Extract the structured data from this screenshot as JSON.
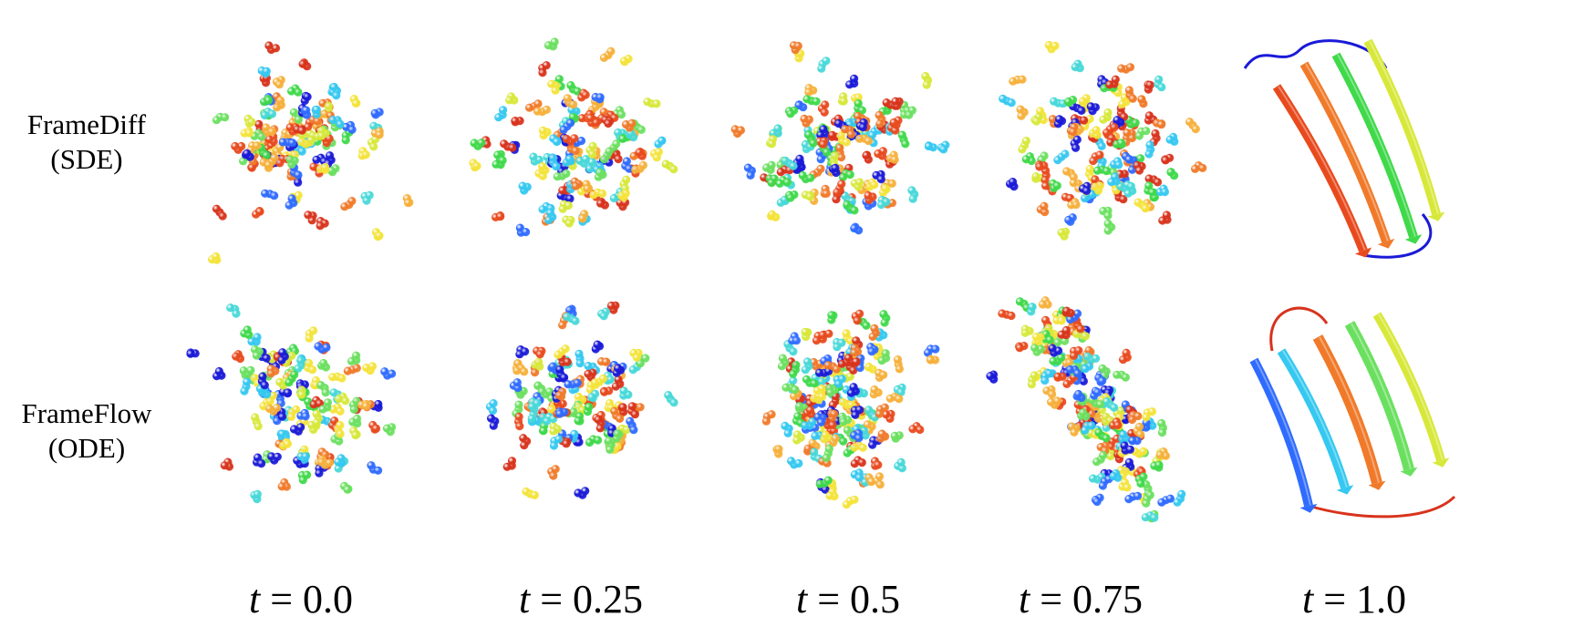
{
  "figure": {
    "rows": [
      {
        "method": "FrameDiff",
        "sampler": "(SDE)"
      },
      {
        "method": "FrameFlow",
        "sampler": "(ODE)"
      }
    ],
    "time_steps": [
      "0.0",
      "0.25",
      "0.5",
      "0.75",
      "1.0"
    ],
    "time_symbol": "t",
    "equals_sign": "=",
    "panel_kinds": [
      "residue-clusters",
      "residue-clusters",
      "residue-clusters",
      "residue-clusters",
      "ribbon-structure"
    ],
    "colors": {
      "palette": [
        "#1a1ad8",
        "#2f6bff",
        "#35c8f0",
        "#47d8d8",
        "#6be060",
        "#3fd94a",
        "#d7e83a",
        "#f4e33a",
        "#f6b03a",
        "#f07a2a",
        "#e84a1e",
        "#d8331c"
      ],
      "background": "#ffffff",
      "text": "#000000"
    }
  }
}
